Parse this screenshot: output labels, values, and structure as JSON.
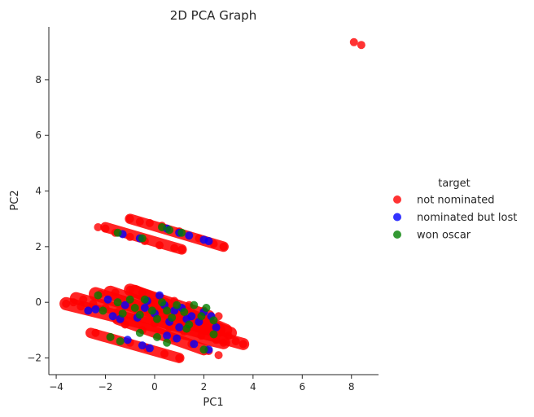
{
  "chart_data": {
    "type": "scatter",
    "title": "2D PCA Graph",
    "xlabel": "PC1",
    "ylabel": "PC2",
    "xlim": [
      -4.3,
      9.1
    ],
    "ylim": [
      -2.6,
      9.9
    ],
    "xticks": [
      -4,
      -2,
      0,
      2,
      4,
      6,
      8
    ],
    "yticks": [
      -2,
      0,
      2,
      4,
      6,
      8
    ],
    "grid": false,
    "legend": {
      "title": "target",
      "placement": "right-outside",
      "entries": [
        "not nominated",
        "nominated but lost",
        "won oscar"
      ]
    },
    "colors": {
      "not nominated": "#ff0000",
      "nominated but lost": "#0000ff",
      "won oscar": "#008000"
    },
    "bands": [
      {
        "x0": -3.6,
        "y0": -0.05,
        "x1": 2.8,
        "y1": -1.45,
        "width": 0.18
      },
      {
        "x0": -3.2,
        "y0": 0.15,
        "x1": 3.6,
        "y1": -1.5,
        "width": 0.14
      },
      {
        "x0": -2.4,
        "y0": 0.3,
        "x1": 2.4,
        "y1": -1.0,
        "width": 0.2
      },
      {
        "x0": -1.8,
        "y0": 0.35,
        "x1": 2.6,
        "y1": -1.0,
        "width": 0.2
      },
      {
        "x0": -1.0,
        "y0": 0.45,
        "x1": 2.2,
        "y1": -0.5,
        "width": 0.15
      },
      {
        "x0": -0.8,
        "y0": 0.4,
        "x1": 2.9,
        "y1": -1.0,
        "width": 0.16
      },
      {
        "x0": -0.3,
        "y0": 0.0,
        "x1": 3.1,
        "y1": -1.1,
        "width": 0.14
      },
      {
        "x0": -1.5,
        "y0": -0.6,
        "x1": 2.0,
        "y1": -1.7,
        "width": 0.12
      },
      {
        "x0": -2.6,
        "y0": -1.1,
        "x1": 1.0,
        "y1": -2.0,
        "width": 0.08
      },
      {
        "x0": -2.0,
        "y0": 2.7,
        "x1": 1.1,
        "y1": 1.9,
        "width": 0.08
      },
      {
        "x0": -1.0,
        "y0": 3.0,
        "x1": 2.8,
        "y1": 2.0,
        "width": 0.08
      }
    ],
    "series": [
      {
        "name": "not nominated",
        "points": [
          [
            8.1,
            9.35
          ],
          [
            8.4,
            9.25
          ],
          [
            -3.6,
            -0.05
          ],
          [
            -3.3,
            0.0
          ],
          [
            -3.0,
            -0.15
          ],
          [
            -2.7,
            -0.3
          ],
          [
            2.8,
            -1.45
          ],
          [
            3.6,
            -1.5
          ],
          [
            3.3,
            -1.4
          ],
          [
            -2.3,
            2.7
          ],
          [
            -2.0,
            2.65
          ],
          [
            -1.6,
            2.5
          ],
          [
            -1.0,
            2.35
          ],
          [
            -0.4,
            2.2
          ],
          [
            0.2,
            2.05
          ],
          [
            0.8,
            1.95
          ],
          [
            1.1,
            1.9
          ],
          [
            -1.0,
            3.0
          ],
          [
            -0.6,
            2.9
          ],
          [
            -0.2,
            2.85
          ],
          [
            0.3,
            2.75
          ],
          [
            1.0,
            2.55
          ],
          [
            1.8,
            2.3
          ],
          [
            2.4,
            2.1
          ],
          [
            2.8,
            2.0
          ],
          [
            -2.4,
            -1.1
          ],
          [
            -1.8,
            -1.25
          ],
          [
            -1.0,
            -1.45
          ],
          [
            -0.3,
            -1.65
          ],
          [
            0.4,
            -1.85
          ],
          [
            1.0,
            -2.0
          ],
          [
            2.6,
            -1.9
          ],
          [
            2.2,
            -1.75
          ],
          [
            1.5,
            -1.5
          ],
          [
            0.8,
            -1.3
          ],
          [
            -0.5,
            -1.0
          ],
          [
            -1.2,
            -0.8
          ],
          [
            -2.2,
            0.3
          ],
          [
            -1.6,
            0.35
          ],
          [
            -1.0,
            0.45
          ],
          [
            -0.5,
            0.35
          ],
          [
            0.2,
            0.2
          ],
          [
            0.8,
            0.05
          ],
          [
            1.4,
            -0.1
          ],
          [
            2.0,
            -0.3
          ],
          [
            2.6,
            -0.5
          ],
          [
            -2.9,
            0.1
          ],
          [
            -2.5,
            -0.05
          ],
          [
            -2.0,
            -0.2
          ],
          [
            -1.5,
            -0.35
          ],
          [
            -0.8,
            -0.55
          ],
          [
            0.0,
            -0.75
          ],
          [
            0.6,
            -0.9
          ],
          [
            1.2,
            -1.05
          ],
          [
            1.9,
            -1.2
          ],
          [
            2.5,
            -1.35
          ],
          [
            -0.9,
            -0.1
          ],
          [
            -0.2,
            -0.3
          ],
          [
            0.5,
            -0.45
          ],
          [
            1.6,
            -0.7
          ],
          [
            2.2,
            -0.85
          ],
          [
            3.0,
            -1.2
          ]
        ]
      },
      {
        "name": "nominated but lost",
        "points": [
          [
            -2.7,
            -0.3
          ],
          [
            -2.4,
            -0.25
          ],
          [
            -1.9,
            0.1
          ],
          [
            -1.7,
            -0.5
          ],
          [
            -1.4,
            -0.6
          ],
          [
            -1.2,
            -0.1
          ],
          [
            -0.7,
            -0.55
          ],
          [
            -0.4,
            -0.2
          ],
          [
            -0.3,
            0.05
          ],
          [
            0.0,
            -0.4
          ],
          [
            0.2,
            0.25
          ],
          [
            0.4,
            -0.1
          ],
          [
            0.6,
            -0.7
          ],
          [
            0.8,
            -0.3
          ],
          [
            1.0,
            -0.9
          ],
          [
            1.1,
            -0.2
          ],
          [
            1.3,
            -0.6
          ],
          [
            1.5,
            -0.5
          ],
          [
            1.8,
            -0.7
          ],
          [
            2.0,
            -0.35
          ],
          [
            2.3,
            -0.5
          ],
          [
            2.5,
            -0.9
          ],
          [
            -1.1,
            -1.35
          ],
          [
            -0.5,
            -1.55
          ],
          [
            -0.2,
            -1.65
          ],
          [
            0.5,
            -1.2
          ],
          [
            0.9,
            -1.3
          ],
          [
            1.6,
            -1.5
          ],
          [
            2.2,
            -1.7
          ],
          [
            0.5,
            2.65
          ],
          [
            1.0,
            2.5
          ],
          [
            1.4,
            2.4
          ],
          [
            2.0,
            2.25
          ],
          [
            2.2,
            2.2
          ],
          [
            -1.3,
            2.45
          ],
          [
            -0.6,
            2.3
          ]
        ]
      },
      {
        "name": "won oscar",
        "points": [
          [
            -2.3,
            0.25
          ],
          [
            -2.1,
            -0.3
          ],
          [
            -1.5,
            0.0
          ],
          [
            -1.3,
            -0.4
          ],
          [
            -1.0,
            0.1
          ],
          [
            -0.8,
            -0.2
          ],
          [
            -0.6,
            -0.45
          ],
          [
            -0.4,
            0.1
          ],
          [
            -0.1,
            -0.3
          ],
          [
            0.1,
            -0.6
          ],
          [
            0.3,
            0.0
          ],
          [
            0.5,
            -0.3
          ],
          [
            0.7,
            -0.55
          ],
          [
            0.9,
            -0.1
          ],
          [
            1.2,
            -0.35
          ],
          [
            1.4,
            -0.8
          ],
          [
            1.6,
            -0.1
          ],
          [
            1.9,
            -0.5
          ],
          [
            2.1,
            -0.2
          ],
          [
            2.4,
            -0.65
          ],
          [
            -1.8,
            -1.25
          ],
          [
            -1.4,
            -1.4
          ],
          [
            -0.6,
            -1.1
          ],
          [
            0.1,
            -1.25
          ],
          [
            0.5,
            -1.45
          ],
          [
            1.3,
            -0.95
          ],
          [
            2.0,
            -1.7
          ],
          [
            2.4,
            -1.15
          ],
          [
            -1.5,
            2.5
          ],
          [
            -0.5,
            2.3
          ],
          [
            0.3,
            2.7
          ],
          [
            0.6,
            2.6
          ],
          [
            1.1,
            2.5
          ]
        ]
      }
    ]
  }
}
